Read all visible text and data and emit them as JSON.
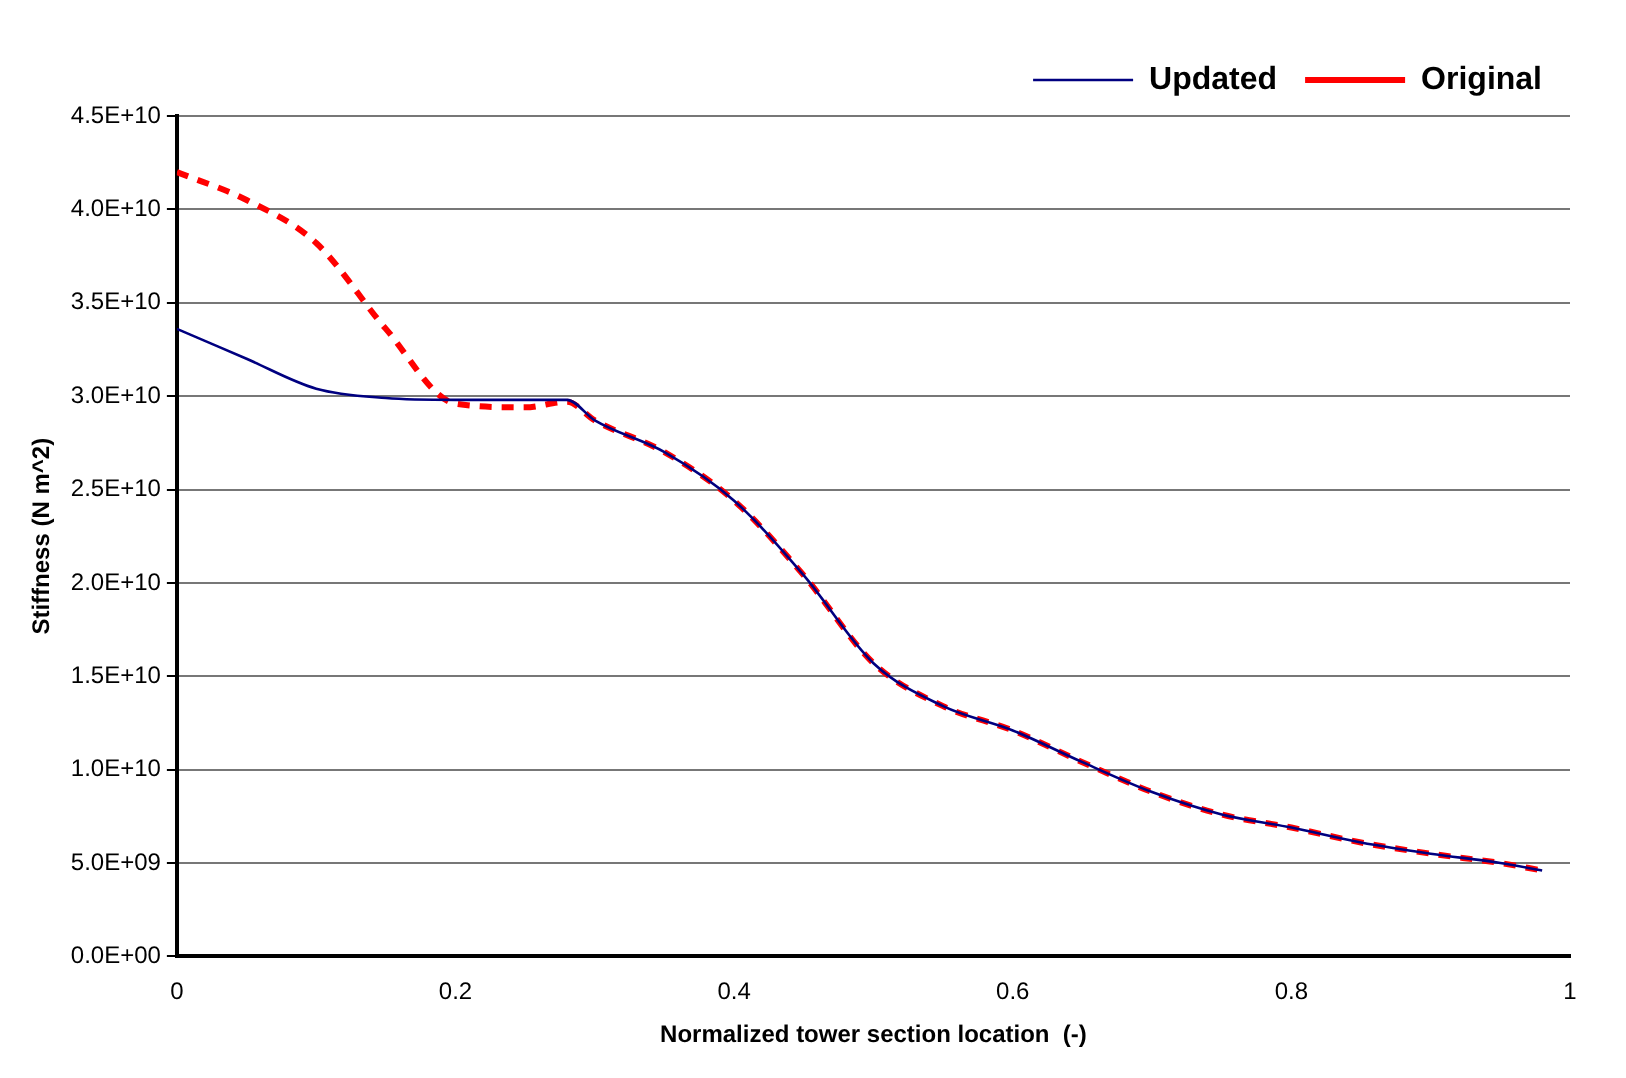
{
  "chart_data": {
    "type": "line",
    "xlabel": "Normalized tower section location  (-)",
    "ylabel": "Stiffness (N m^2)",
    "xlim": [
      0,
      1
    ],
    "xticks": [
      0,
      0.2,
      0.4,
      0.6,
      0.8,
      1
    ],
    "ylim": [
      0,
      45000000000
    ],
    "yticks": [
      {
        "value": 0,
        "label": "0.0E+00"
      },
      {
        "value": 5000000000,
        "label": "5.0E+09"
      },
      {
        "value": 10000000000,
        "label": "1.0E+10"
      },
      {
        "value": 15000000000,
        "label": "1.5E+10"
      },
      {
        "value": 20000000000,
        "label": "2.0E+10"
      },
      {
        "value": 25000000000,
        "label": "2.5E+10"
      },
      {
        "value": 30000000000,
        "label": "3.0E+10"
      },
      {
        "value": 35000000000,
        "label": "3.5E+10"
      },
      {
        "value": 40000000000,
        "label": "4.0E+10"
      },
      {
        "value": 45000000000,
        "label": "4.5E+10"
      }
    ],
    "grid": "y",
    "legend": "top right",
    "marker": "none",
    "x": [
      0,
      0.05,
      0.1,
      0.15,
      0.2,
      0.25,
      0.28,
      0.3,
      0.35,
      0.4,
      0.45,
      0.5,
      0.55,
      0.6,
      0.65,
      0.7,
      0.75,
      0.8,
      0.85,
      0.9,
      0.95,
      0.98
    ],
    "series": [
      {
        "name": "Updated",
        "color": "#000080",
        "line_style": "solid",
        "values": [
          33600000000,
          32000000000,
          30400000000,
          29900000000,
          29800000000,
          29800000000,
          29800000000,
          28700000000,
          27000000000,
          24400000000,
          20400000000,
          15700000000,
          13400000000,
          12100000000,
          10400000000,
          8800000000,
          7600000000,
          6900000000,
          6100000000,
          5500000000,
          5000000000,
          4600000000
        ]
      },
      {
        "name": "Original",
        "color": "#ff0000",
        "line_style": "dashed",
        "values": [
          42000000000,
          40500000000,
          38200000000,
          33600000000,
          29600000000,
          29400000000,
          29700000000,
          28700000000,
          27000000000,
          24400000000,
          20400000000,
          15700000000,
          13400000000,
          12100000000,
          10400000000,
          8800000000,
          7600000000,
          6900000000,
          6100000000,
          5500000000,
          5000000000,
          4600000000
        ]
      }
    ]
  }
}
